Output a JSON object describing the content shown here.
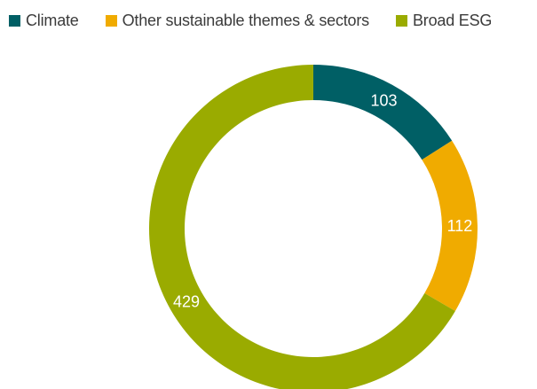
{
  "chart_data": {
    "type": "pie",
    "style": "donut",
    "categories": [
      "Climate",
      "Other sustainable themes & sectors",
      "Broad ESG"
    ],
    "values": [
      103,
      112,
      429
    ],
    "colors": [
      "#005f65",
      "#f0ab00",
      "#9aab00"
    ],
    "data_labels": [
      "103",
      "112",
      "429"
    ],
    "legend_position": "top-left",
    "title": ""
  }
}
